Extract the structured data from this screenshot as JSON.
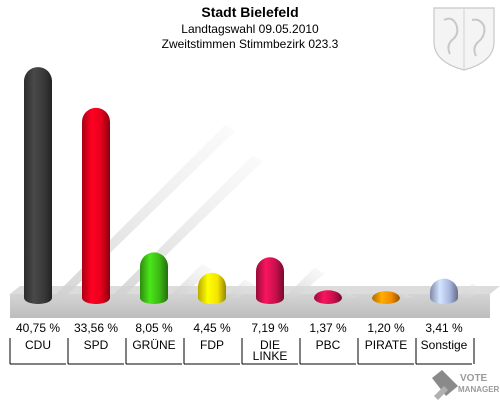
{
  "header": {
    "title": "Stadt Bielefeld",
    "subtitle": "Landtagswahl 09.05.2010",
    "subtitle2": "Zweitstimmen Stimmbezirk 023.3"
  },
  "watermark": {
    "line1": "VOTE",
    "line2": "MANAGER"
  },
  "colors": {
    "background": "#ffffff",
    "floor": "#c8c8c8",
    "text": "#000000"
  },
  "chart_data": {
    "type": "bar",
    "title": "Stadt Bielefeld",
    "categories": [
      "CDU",
      "SPD",
      "GRÜNE",
      "FDP",
      "DIE LINKE",
      "PBC",
      "PIRATE",
      "Sonstige"
    ],
    "value_labels": [
      "40,75 %",
      "33,56 %",
      "8,05 %",
      "4,45 %",
      "7,19 %",
      "1,37 %",
      "1,20 %",
      "3,41 %"
    ],
    "series": [
      {
        "values": [
          40.75,
          33.56,
          8.05,
          4.45,
          7.19,
          1.37,
          1.2,
          3.41
        ]
      }
    ],
    "bar_colors": [
      "#3a3a3a",
      "#e3001b",
      "#3cb814",
      "#f5e400",
      "#c8104d",
      "#c8104d",
      "#f08a00",
      "#a9b7e0"
    ],
    "ylim": [
      0,
      42
    ],
    "grid": false,
    "legend": "none"
  }
}
